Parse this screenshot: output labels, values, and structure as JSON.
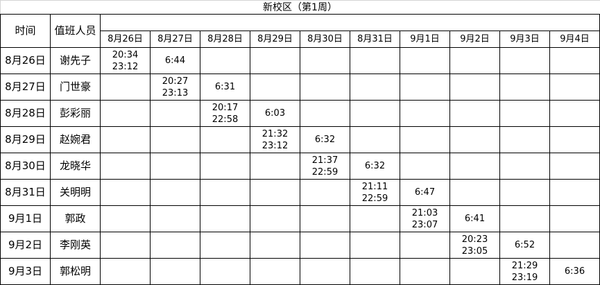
{
  "title": "新校区（第1周）",
  "headers": {
    "time": "时间",
    "staff": "值班人员"
  },
  "dates": [
    "8月26日",
    "8月27日",
    "8月28日",
    "8月29日",
    "8月30日",
    "8月31日",
    "9月1日",
    "9月2日",
    "9月3日",
    "9月4日"
  ],
  "rows": [
    {
      "time": "8月26日",
      "staff": "谢先子",
      "cells": [
        "20:34\n23:12",
        "6:44",
        "",
        "",
        "",
        "",
        "",
        "",
        "",
        ""
      ]
    },
    {
      "time": "8月27日",
      "staff": "门世豪",
      "cells": [
        "",
        "20:27\n23:13",
        "6:31",
        "",
        "",
        "",
        "",
        "",
        "",
        ""
      ]
    },
    {
      "time": "8月28日",
      "staff": "彭彩丽",
      "cells": [
        "",
        "",
        "20:17\n22:58",
        "6:03",
        "",
        "",
        "",
        "",
        "",
        ""
      ]
    },
    {
      "time": "8月29日",
      "staff": "赵婉君",
      "cells": [
        "",
        "",
        "",
        "21:32\n23:12",
        "6:32",
        "",
        "",
        "",
        "",
        ""
      ]
    },
    {
      "time": "8月30日",
      "staff": "龙晓华",
      "cells": [
        "",
        "",
        "",
        "",
        "21:37\n22:59",
        "6:32",
        "",
        "",
        "",
        ""
      ]
    },
    {
      "time": "8月31日",
      "staff": "关明明",
      "cells": [
        "",
        "",
        "",
        "",
        "",
        "21:11\n22:59",
        "6:47",
        "",
        "",
        ""
      ]
    },
    {
      "time": "9月1日",
      "staff": "郭政",
      "cells": [
        "",
        "",
        "",
        "",
        "",
        "",
        "21:03\n23:07",
        "6:41",
        "",
        ""
      ]
    },
    {
      "time": "9月2日",
      "staff": "李刚英",
      "cells": [
        "",
        "",
        "",
        "",
        "",
        "",
        "",
        "20:23\n23:05",
        "6:52",
        ""
      ]
    },
    {
      "time": "9月3日",
      "staff": "郭松明",
      "cells": [
        "",
        "",
        "",
        "",
        "",
        "",
        "",
        "",
        "21:29\n23:19",
        "6:36"
      ]
    }
  ]
}
